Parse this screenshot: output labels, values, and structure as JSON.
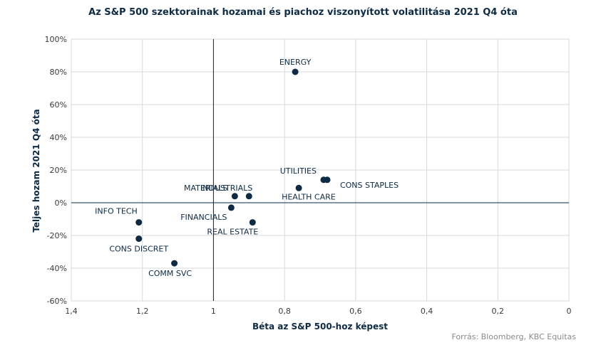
{
  "title": "Az S&P 500 szektorainak hozamai és piachoz viszonyított volatilitása 2021 Q4 óta",
  "source": "Forrás: Bloomberg, KBC Equitas",
  "colors": {
    "point": "#0d2b45",
    "axis": "#0d2b45",
    "grid": "#d9d9d9"
  },
  "chart_data": {
    "type": "scatter",
    "xlabel": "Béta az S&P 500-hoz képest",
    "ylabel": "Teljes hozam 2021 Q4 óta",
    "xlim": [
      1.4,
      0
    ],
    "ylim": [
      -0.6,
      1.0
    ],
    "x_ticks": [
      1.4,
      1.2,
      1.0,
      0.8,
      0.6,
      0.4,
      0.2,
      0
    ],
    "x_tick_labels": [
      "1,4",
      "1,2",
      "1",
      "0,8",
      "0,6",
      "0,4",
      "0,2",
      "0"
    ],
    "y_ticks": [
      1.0,
      0.8,
      0.6,
      0.4,
      0.2,
      0,
      -0.2,
      -0.4,
      -0.6
    ],
    "y_tick_labels": [
      "100%",
      "80%",
      "60%",
      "40%",
      "20%",
      "0%",
      "-20%",
      "-40%",
      "-60%"
    ],
    "reference_lines": {
      "x": 1.0,
      "y": 0
    },
    "grid": true,
    "points": [
      {
        "label": "ENERGY",
        "x": 0.77,
        "y": 0.8
      },
      {
        "label": "UTILITIES",
        "x": 0.69,
        "y": 0.14
      },
      {
        "label": "CONS STAPLES",
        "x": 0.68,
        "y": 0.14
      },
      {
        "label": "HEALTH CARE",
        "x": 0.76,
        "y": 0.09
      },
      {
        "label": "INDUSTRIALS",
        "x": 0.9,
        "y": 0.04
      },
      {
        "label": "MATERIALS",
        "x": 0.94,
        "y": 0.04
      },
      {
        "label": "FINANCIALS",
        "x": 0.95,
        "y": -0.03
      },
      {
        "label": "REAL ESTATE",
        "x": 0.89,
        "y": -0.12
      },
      {
        "label": "INFO TECH",
        "x": 1.21,
        "y": -0.12
      },
      {
        "label": "CONS DISCRET",
        "x": 1.21,
        "y": -0.22
      },
      {
        "label": "COMM SVC",
        "x": 1.11,
        "y": -0.37
      }
    ]
  }
}
